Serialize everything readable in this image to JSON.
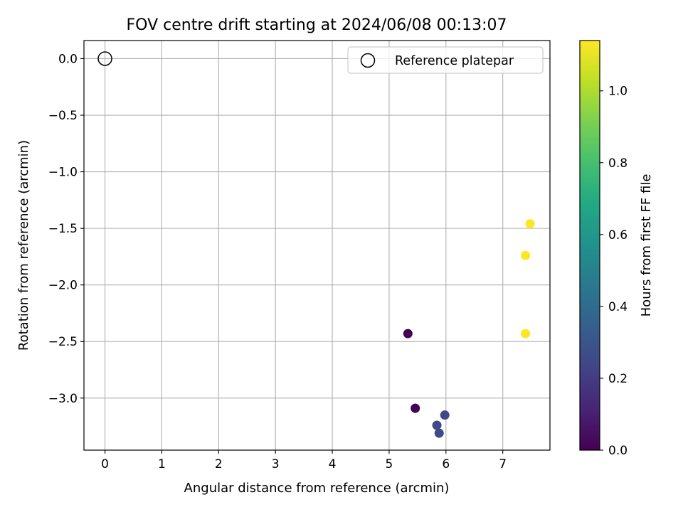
{
  "chart_data": {
    "type": "scatter",
    "title": "FOV centre drift starting at 2024/06/08 00:13:07",
    "xlabel": "Angular distance from reference (arcmin)",
    "ylabel": "Rotation from reference (arcmin)",
    "xlim": [
      -0.37,
      7.83
    ],
    "ylim": [
      -3.46,
      0.16
    ],
    "xticks": [
      0,
      1,
      2,
      3,
      4,
      5,
      6,
      7
    ],
    "yticks": [
      0.0,
      -0.5,
      -1.0,
      -1.5,
      -2.0,
      -2.5,
      -3.0
    ],
    "xtick_labels": [
      "0",
      "1",
      "2",
      "3",
      "4",
      "5",
      "6",
      "7"
    ],
    "ytick_labels": [
      "0.0",
      "−0.5",
      "−1.0",
      "−1.5",
      "−2.0",
      "−2.5",
      "−3.0"
    ],
    "grid": true,
    "legend": {
      "placement": "upper-right",
      "entries": [
        "Reference platepar"
      ]
    },
    "reference_point": {
      "x": 0.0,
      "y": 0.0,
      "marker": "open-circle",
      "color": "#000000"
    },
    "points": [
      {
        "x": 5.33,
        "y": -2.43,
        "hours": 0.0
      },
      {
        "x": 5.46,
        "y": -3.09,
        "hours": 0.0
      },
      {
        "x": 5.84,
        "y": -3.24,
        "hours": 0.25
      },
      {
        "x": 5.88,
        "y": -3.31,
        "hours": 0.25
      },
      {
        "x": 5.98,
        "y": -3.15,
        "hours": 0.25
      },
      {
        "x": 7.4,
        "y": -2.43,
        "hours": 1.14
      },
      {
        "x": 7.4,
        "y": -1.74,
        "hours": 1.14
      },
      {
        "x": 7.48,
        "y": -1.46,
        "hours": 1.14
      }
    ],
    "colorbar": {
      "label": "Hours from first FF file",
      "colormap": "viridis",
      "range": [
        0.0,
        1.14
      ],
      "ticks": [
        0.0,
        0.2,
        0.4,
        0.6,
        0.8,
        1.0
      ],
      "tick_labels": [
        "0.0",
        "0.2",
        "0.4",
        "0.6",
        "0.8",
        "1.0"
      ]
    }
  }
}
